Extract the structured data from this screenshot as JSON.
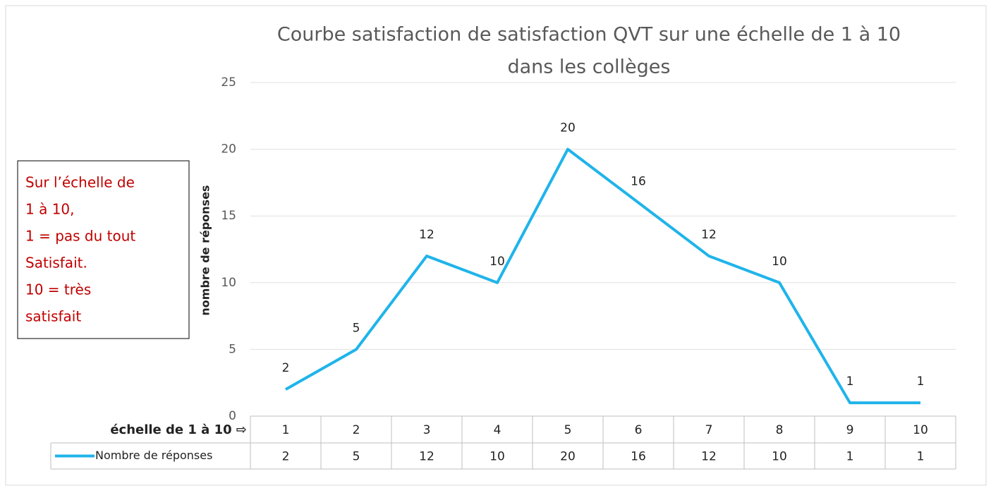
{
  "chart_data": {
    "type": "line",
    "title": [
      "Courbe satisfaction de satisfaction QVT sur une échelle de 1 à 10",
      "dans les collèges"
    ],
    "y_label": "nombre de réponses",
    "x_label": "échelle de 1 à 10 ⇨",
    "categories": [
      "1",
      "2",
      "3",
      "4",
      "5",
      "6",
      "7",
      "8",
      "9",
      "10"
    ],
    "series": [
      {
        "name": "Nombre de réponses",
        "color": "#1fb4ea",
        "values": [
          2,
          5,
          12,
          10,
          20,
          16,
          12,
          10,
          1,
          1
        ]
      }
    ],
    "ylim": [
      0,
      25
    ],
    "yticks": [
      0,
      5,
      10,
      15,
      20,
      25
    ],
    "grid": true,
    "data_table": true,
    "annotation": [
      "Sur l’échelle de",
      "1 à 10,",
      "1 = pas du tout",
      "Satisfait.",
      "10 = très",
      "satisfait"
    ]
  }
}
